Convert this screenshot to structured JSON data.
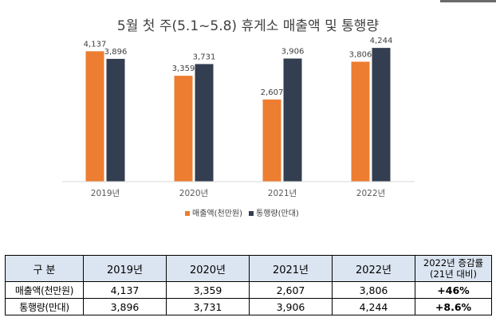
{
  "chart_data": {
    "type": "bar",
    "title": "5월 첫 주(5.1~5.8) 휴게소 매출액 및 통행량",
    "categories": [
      "2019년",
      "2020년",
      "2021년",
      "2022년"
    ],
    "series": [
      {
        "name": "매출액(천만원)",
        "color": "#ed7d31",
        "values": [
          4137,
          3359,
          2607,
          3806
        ]
      },
      {
        "name": "통행량(만대)",
        "color": "#333f50",
        "values": [
          3896,
          3731,
          3906,
          4244
        ]
      }
    ],
    "data_labels": [
      [
        "4,137",
        "3,359",
        "2,607",
        "3,806"
      ],
      [
        "3,896",
        "3,731",
        "3,906",
        "4,244"
      ]
    ],
    "ylim": [
      0,
      4500
    ],
    "grid": false,
    "legend_position": "bottom-center",
    "xlabel": "",
    "ylabel": ""
  },
  "table": {
    "header": {
      "label": "구 분",
      "years": [
        "2019년",
        "2020년",
        "2021년",
        "2022년"
      ],
      "growth_line1": "2022년 증감률",
      "growth_line2": "(21년 대비)"
    },
    "rows": [
      {
        "label": "매출액(천만원)",
        "values": [
          "4,137",
          "3,359",
          "2,607",
          "3,806"
        ],
        "growth": "+46%"
      },
      {
        "label": "통행량(만대)",
        "values": [
          "3,896",
          "3,731",
          "3,906",
          "4,244"
        ],
        "growth": "+8.6%"
      }
    ]
  }
}
